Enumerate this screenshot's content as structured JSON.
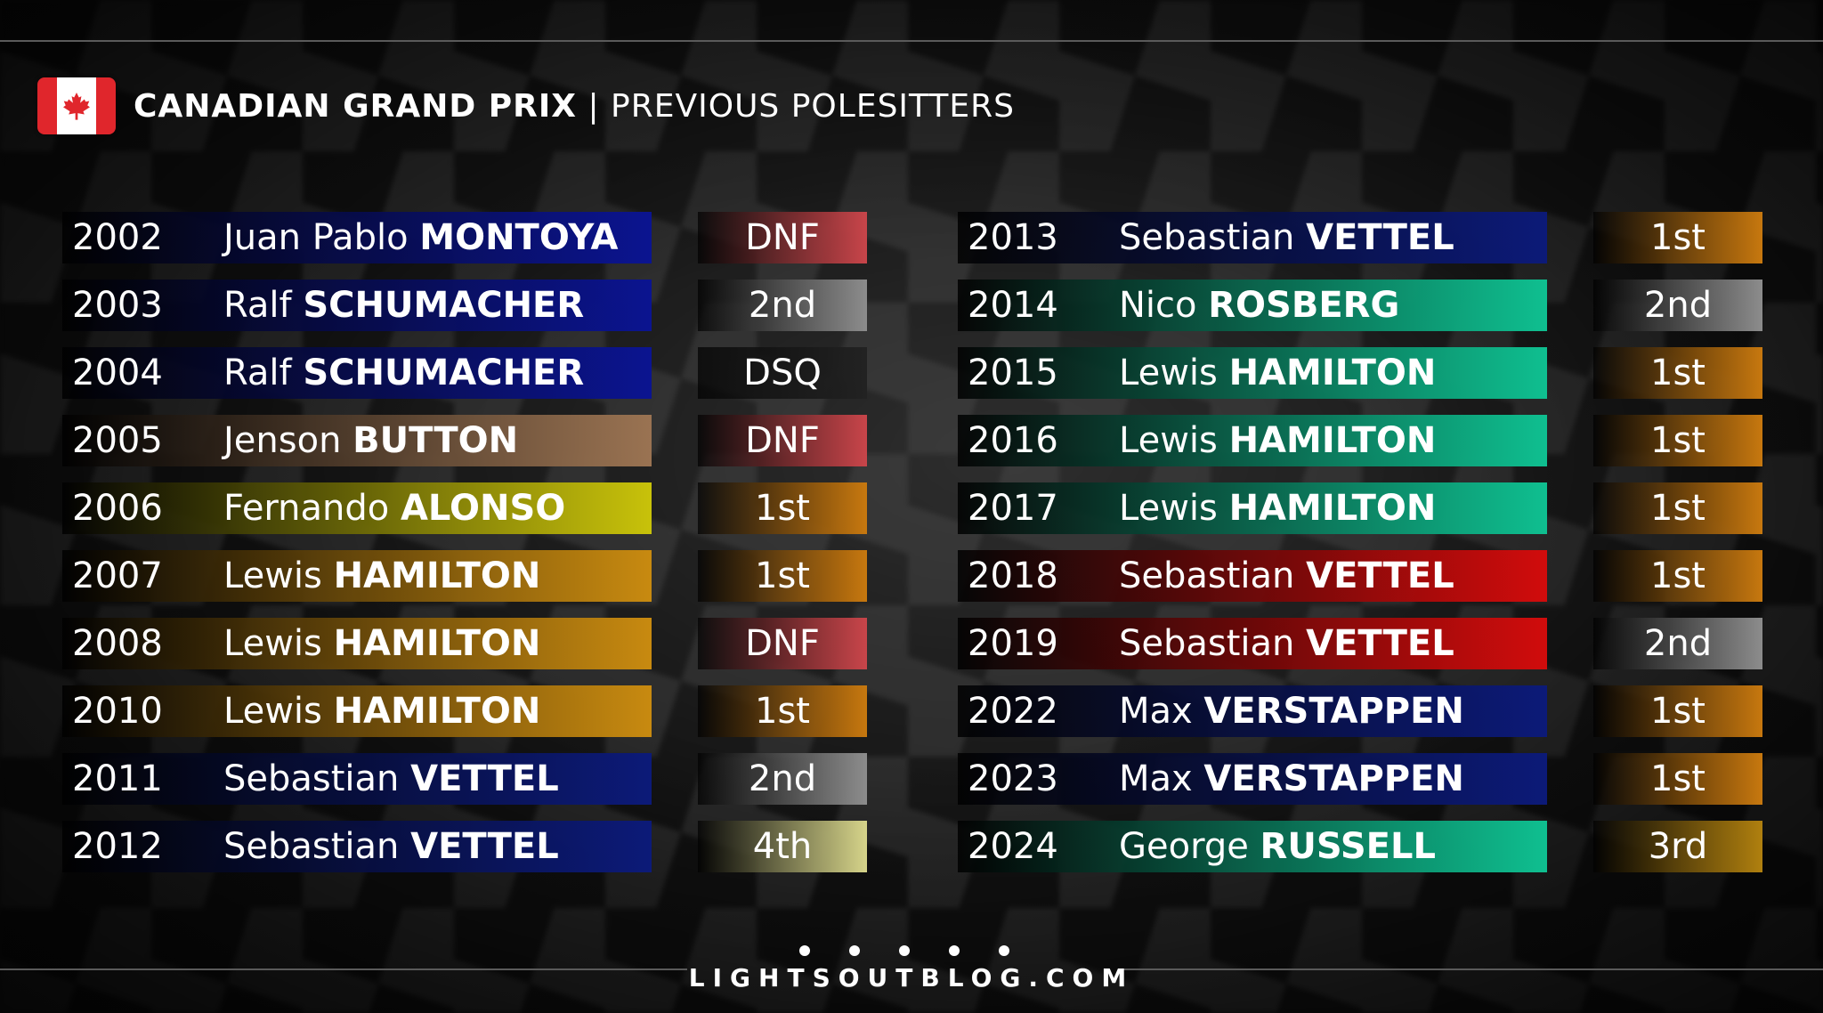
{
  "header": {
    "title_bold": "CANADIAN GRAND PRIX",
    "title_rest": " | PREVIOUS POLESITTERS"
  },
  "left": [
    {
      "year": "2002",
      "first": "Juan Pablo ",
      "last": "MONTOYA",
      "result": "DNF",
      "team": "#0b1490",
      "res": "dnf"
    },
    {
      "year": "2003",
      "first": "Ralf ",
      "last": "SCHUMACHER",
      "result": "2nd",
      "team": "#0b1490",
      "res": "p2"
    },
    {
      "year": "2004",
      "first": "Ralf ",
      "last": "SCHUMACHER",
      "result": "DSQ",
      "team": "#0b1490",
      "res": "dsq"
    },
    {
      "year": "2005",
      "first": "Jenson ",
      "last": "BUTTON",
      "result": "DNF",
      "team": "#9a7352",
      "res": "dnf"
    },
    {
      "year": "2006",
      "first": "Fernando ",
      "last": "ALONSO",
      "result": "1st",
      "team": "#c8c20a",
      "res": "p1"
    },
    {
      "year": "2007",
      "first": "Lewis ",
      "last": "HAMILTON",
      "result": "1st",
      "team": "#c88a10",
      "res": "p1"
    },
    {
      "year": "2008",
      "first": "Lewis ",
      "last": "HAMILTON",
      "result": "DNF",
      "team": "#c88a10",
      "res": "dnf"
    },
    {
      "year": "2010",
      "first": "Lewis ",
      "last": "HAMILTON",
      "result": "1st",
      "team": "#c88a10",
      "res": "p1"
    },
    {
      "year": "2011",
      "first": "Sebastian ",
      "last": "VETTEL",
      "result": "2nd",
      "team": "#0c1a78",
      "res": "p2"
    },
    {
      "year": "2012",
      "first": "Sebastian ",
      "last": "VETTEL",
      "result": "4th",
      "team": "#0c1a78",
      "res": "p4"
    }
  ],
  "right": [
    {
      "year": "2013",
      "first": "Sebastian ",
      "last": "VETTEL",
      "result": "1st",
      "team": "#0c1a78",
      "res": "p1"
    },
    {
      "year": "2014",
      "first": "Nico ",
      "last": "ROSBERG",
      "result": "2nd",
      "team": "#0fbf90",
      "res": "p2"
    },
    {
      "year": "2015",
      "first": "Lewis ",
      "last": "HAMILTON",
      "result": "1st",
      "team": "#0fbf90",
      "res": "p1"
    },
    {
      "year": "2016",
      "first": "Lewis ",
      "last": "HAMILTON",
      "result": "1st",
      "team": "#0fbf90",
      "res": "p1"
    },
    {
      "year": "2017",
      "first": "Lewis ",
      "last": "HAMILTON",
      "result": "1st",
      "team": "#0fbf90",
      "res": "p1"
    },
    {
      "year": "2018",
      "first": "Sebastian ",
      "last": "VETTEL",
      "result": "1st",
      "team": "#d10c0c",
      "res": "p1"
    },
    {
      "year": "2019",
      "first": "Sebastian ",
      "last": "VETTEL",
      "result": "2nd",
      "team": "#d10c0c",
      "res": "p2"
    },
    {
      "year": "2022",
      "first": "Max ",
      "last": "VERSTAPPEN",
      "result": "1st",
      "team": "#0c1a78",
      "res": "p1"
    },
    {
      "year": "2023",
      "first": "Max ",
      "last": "VERSTAPPEN",
      "result": "1st",
      "team": "#0c1a78",
      "res": "p1"
    },
    {
      "year": "2024",
      "first": "George ",
      "last": "RUSSELL",
      "result": "3rd",
      "team": "#0fbf90",
      "res": "p3"
    }
  ],
  "result_colors": {
    "p1": "#c7780f",
    "p2": "#8c8c8c",
    "p3": "#b0800f",
    "p4": "#d6d48a",
    "dnf": "#c8454a",
    "dsq": "#222222"
  },
  "footer": {
    "site": "LIGHTSOUTBLOG.COM"
  },
  "icons": {
    "flag": "canada-flag-icon"
  }
}
